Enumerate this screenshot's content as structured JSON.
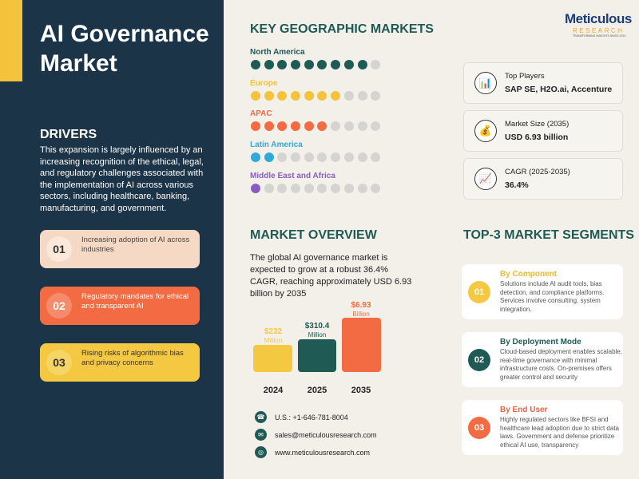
{
  "title": "AI Governance Market",
  "drivers": {
    "heading": "DRIVERS",
    "text": "This expansion is largely influenced by an increasing recognition of the ethical, legal, and regulatory challenges associated with the implementation of AI across various sectors, including healthcare, banking, manufacturing, and government.",
    "items": [
      {
        "num": "01",
        "text": "Increasing adoption of AI across industries"
      },
      {
        "num": "02",
        "text": "Regulatory mandates for ethical and transparent AI"
      },
      {
        "num": "03",
        "text": "Rising risks of algorithmic bias and privacy concerns"
      }
    ]
  },
  "geo": {
    "heading": "KEY GEOGRAPHIC MARKETS",
    "regions": [
      {
        "name": "North America",
        "filled": 9,
        "total": 10,
        "color": "#1f5a55"
      },
      {
        "name": "Europe",
        "filled": 7,
        "total": 10,
        "color": "#f5c33b"
      },
      {
        "name": "APAC",
        "filled": 6,
        "total": 10,
        "color": "#f26b43"
      },
      {
        "name": "Latin America",
        "filled": 2,
        "total": 10,
        "color": "#33a9d8"
      },
      {
        "name": "Middle East and Africa",
        "filled": 1,
        "total": 10,
        "color": "#8a5cc2"
      }
    ]
  },
  "logo": {
    "name": "Meticulous",
    "sub": "RESEARCH",
    "tagline": "TRANSFORMING INSIGHTS SINCE 2010"
  },
  "info": [
    {
      "label": "Top Players",
      "value": "SAP SE, H2O.ai, Accenture",
      "icon": "chart-icon"
    },
    {
      "label": "Market Size (2035)",
      "value": "USD 6.93 billion",
      "icon": "money-bag-icon"
    },
    {
      "label": "CAGR (2025-2035)",
      "value": "36.4%",
      "icon": "growth-icon"
    }
  ],
  "overview": {
    "heading": "MARKET OVERVIEW",
    "text": "The global AI governance market is expected to grow at a robust 36.4% CAGR, reaching approximately USD 6.93 billion by 2035",
    "bars": [
      {
        "year": "2024",
        "value": "$232",
        "unit": "Million",
        "color": "#f5c33b"
      },
      {
        "year": "2025",
        "value": "$310.4",
        "unit": "Million",
        "color": "#1f5a55"
      },
      {
        "year": "2035",
        "value": "$6.93",
        "unit": "Billion",
        "color": "#f26b43"
      }
    ]
  },
  "contact": {
    "phone": "U.S.: +1-646-781-8004",
    "email": "sales@meticulousresearch.com",
    "web": "www.meticulousresearch.com"
  },
  "segments": {
    "heading": "TOP-3 MARKET SEGMENTS",
    "items": [
      {
        "num": "01",
        "title": "By Component",
        "text": "Solutions include AI audit tools, bias detection, and compliance platforms. Services involve consulting, system integration.",
        "color": "#f5c33b"
      },
      {
        "num": "02",
        "title": "By Deployment Mode",
        "text": "Cloud-based deployment enables scalable, real-time governance with minimal infrastructure costs. On-premises offers greater control and security",
        "color": "#1f5a55"
      },
      {
        "num": "03",
        "title": "By End User",
        "text": "Highly regulated sectors like BFSI and healthcare lead adoption due to strict data laws. Government and defense prioritize ethical AI use, transparency",
        "color": "#f26b43"
      }
    ]
  }
}
